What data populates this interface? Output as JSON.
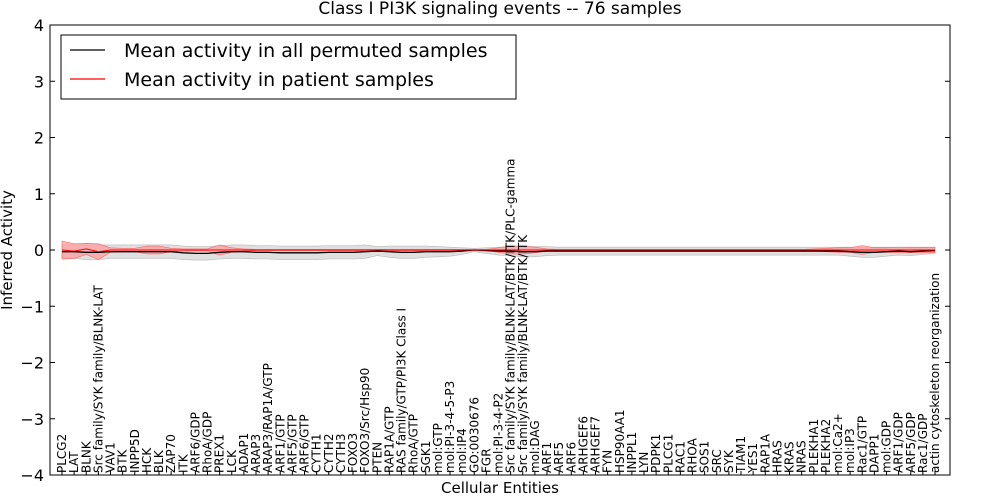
{
  "chart_data": {
    "type": "line",
    "title": "Class I PI3K signaling events -- 76 samples",
    "xlabel": "Cellular Entities",
    "ylabel": "Inferred Activity",
    "ylim": [
      -4,
      4
    ],
    "yticks": [
      -4,
      -3,
      -2,
      -1,
      0,
      1,
      2,
      3,
      4
    ],
    "legend_position": "top-left",
    "colors": {
      "permuted": "#000000",
      "patient": "#ff0000",
      "permuted_band": "#e0e0e0",
      "patient_band": "#ff9999"
    },
    "categories": [
      "PLCG2",
      "LAT",
      "BLNK",
      "Src family/SYK family/BLNK-LAT",
      "VAV1",
      "BTK",
      "INPP5D",
      "HCK",
      "BLK",
      "ZAP70",
      "ITK",
      "ARF6/GDP",
      "RhoA/GDP",
      "PREX1",
      "LCK",
      "ADAP1",
      "ARAP3",
      "ARAP3/RAP1A/GTP",
      "ARF1/GTP",
      "ARF5/GTP",
      "ARF6/GTP",
      "CYTH1",
      "CYTH2",
      "CYTH3",
      "FOXO3",
      "FOXO3/Src/Hsp90",
      "PTEN",
      "RAP1A/GTP",
      "RAS family/GTP/PI3K Class I",
      "RhoA/GTP",
      "SGK1",
      "mol:GTP",
      "mol:PI-3-4-5-P3",
      "mol:IP4",
      "GO:0030676",
      "FGR",
      "mol:PI-3-4-P2",
      "Src family/SYK family/BLNK-LAT/BTK/ITK/PLC-gamma",
      "Src family/SYK family/BLNK-LAT/BTK/ITK",
      "mol:DAG",
      "ARF1",
      "ARF5",
      "ARF6",
      "ARHGEF6",
      "ARHGEF7",
      "FYN",
      "HSP90AA1",
      "INPPL1",
      "LYN",
      "PDPK1",
      "PLCG1",
      "RAC1",
      "RHOA",
      "SOS1",
      "SRC",
      "SYK",
      "TIAM1",
      "YES1",
      "RAP1A",
      "HRAS",
      "KRAS",
      "NRAS",
      "PLEKHA1",
      "PLEKHA2",
      "mol:Ca2+",
      "mol:IP3",
      "Rac1/GTP",
      "DAPP1",
      "mol:GDP",
      "ARF1/GDP",
      "ARF5/GDP",
      "Rac1/GDP",
      "actin cytoskeleton reorganization"
    ],
    "series": [
      {
        "name": "Mean activity in all permuted samples",
        "color": "#000000",
        "values": [
          -0.03,
          -0.03,
          -0.04,
          -0.04,
          -0.03,
          -0.03,
          -0.03,
          -0.03,
          -0.03,
          -0.03,
          -0.05,
          -0.06,
          -0.06,
          -0.04,
          -0.03,
          -0.03,
          -0.04,
          -0.04,
          -0.05,
          -0.05,
          -0.05,
          -0.05,
          -0.04,
          -0.04,
          -0.04,
          -0.03,
          -0.02,
          -0.03,
          -0.04,
          -0.04,
          -0.03,
          -0.03,
          -0.03,
          -0.02,
          0.0,
          -0.01,
          -0.02,
          -0.02,
          -0.03,
          -0.03,
          -0.02,
          -0.02,
          -0.02,
          -0.02,
          -0.02,
          -0.02,
          -0.02,
          -0.02,
          -0.02,
          -0.02,
          -0.02,
          -0.02,
          -0.02,
          -0.02,
          -0.02,
          -0.02,
          -0.02,
          -0.02,
          -0.02,
          -0.02,
          -0.02,
          -0.02,
          -0.02,
          -0.02,
          -0.02,
          -0.03,
          -0.04,
          -0.04,
          -0.03,
          -0.02,
          -0.03,
          -0.02,
          -0.01
        ],
        "band": [
          0.12,
          0.12,
          0.13,
          0.13,
          0.12,
          0.12,
          0.12,
          0.12,
          0.12,
          0.12,
          0.12,
          0.12,
          0.12,
          0.12,
          0.12,
          0.12,
          0.12,
          0.12,
          0.12,
          0.12,
          0.12,
          0.12,
          0.12,
          0.12,
          0.12,
          0.12,
          0.08,
          0.1,
          0.11,
          0.11,
          0.1,
          0.09,
          0.08,
          0.06,
          0.03,
          0.05,
          0.07,
          0.08,
          0.09,
          0.09,
          0.08,
          0.07,
          0.07,
          0.07,
          0.07,
          0.07,
          0.07,
          0.07,
          0.07,
          0.07,
          0.07,
          0.07,
          0.07,
          0.07,
          0.07,
          0.07,
          0.07,
          0.07,
          0.07,
          0.07,
          0.07,
          0.07,
          0.07,
          0.07,
          0.07,
          0.08,
          0.09,
          0.09,
          0.08,
          0.07,
          0.07,
          0.06,
          0.05
        ]
      },
      {
        "name": "Mean activity in patient samples",
        "color": "#ff0000",
        "values": [
          0.0,
          -0.02,
          0.02,
          -0.03,
          0.0,
          0.0,
          0.0,
          0.0,
          0.0,
          0.0,
          0.0,
          0.0,
          0.0,
          0.0,
          0.0,
          0.0,
          0.0,
          0.0,
          0.0,
          0.0,
          0.0,
          0.0,
          0.0,
          0.0,
          0.0,
          0.0,
          0.0,
          0.0,
          0.0,
          0.0,
          0.0,
          0.0,
          0.0,
          0.0,
          0.0,
          0.0,
          0.0,
          0.0,
          0.0,
          0.0,
          0.0,
          0.0,
          0.0,
          0.0,
          0.0,
          0.0,
          0.0,
          0.0,
          0.0,
          0.0,
          0.0,
          0.0,
          0.0,
          0.0,
          0.0,
          0.0,
          0.0,
          0.0,
          0.0,
          0.0,
          0.0,
          0.0,
          0.0,
          0.0,
          0.0,
          0.0,
          0.0,
          0.0,
          0.0,
          0.0,
          0.0,
          0.0,
          0.0
        ],
        "band": [
          0.16,
          0.13,
          0.1,
          0.14,
          0.04,
          0.03,
          0.03,
          0.07,
          0.07,
          0.03,
          0.02,
          0.02,
          0.02,
          0.09,
          0.04,
          0.02,
          0.01,
          0.01,
          0.01,
          0.01,
          0.01,
          0.01,
          0.01,
          0.01,
          0.01,
          0.01,
          0.01,
          0.01,
          0.01,
          0.01,
          0.01,
          0.01,
          0.01,
          0.01,
          0.01,
          0.01,
          0.04,
          0.07,
          0.07,
          0.05,
          0.02,
          0.01,
          0.01,
          0.01,
          0.01,
          0.01,
          0.01,
          0.01,
          0.01,
          0.01,
          0.01,
          0.01,
          0.01,
          0.01,
          0.01,
          0.01,
          0.01,
          0.01,
          0.01,
          0.01,
          0.01,
          0.01,
          0.02,
          0.03,
          0.04,
          0.04,
          0.08,
          0.04,
          0.04,
          0.05,
          0.05,
          0.05,
          0.05
        ]
      }
    ]
  }
}
